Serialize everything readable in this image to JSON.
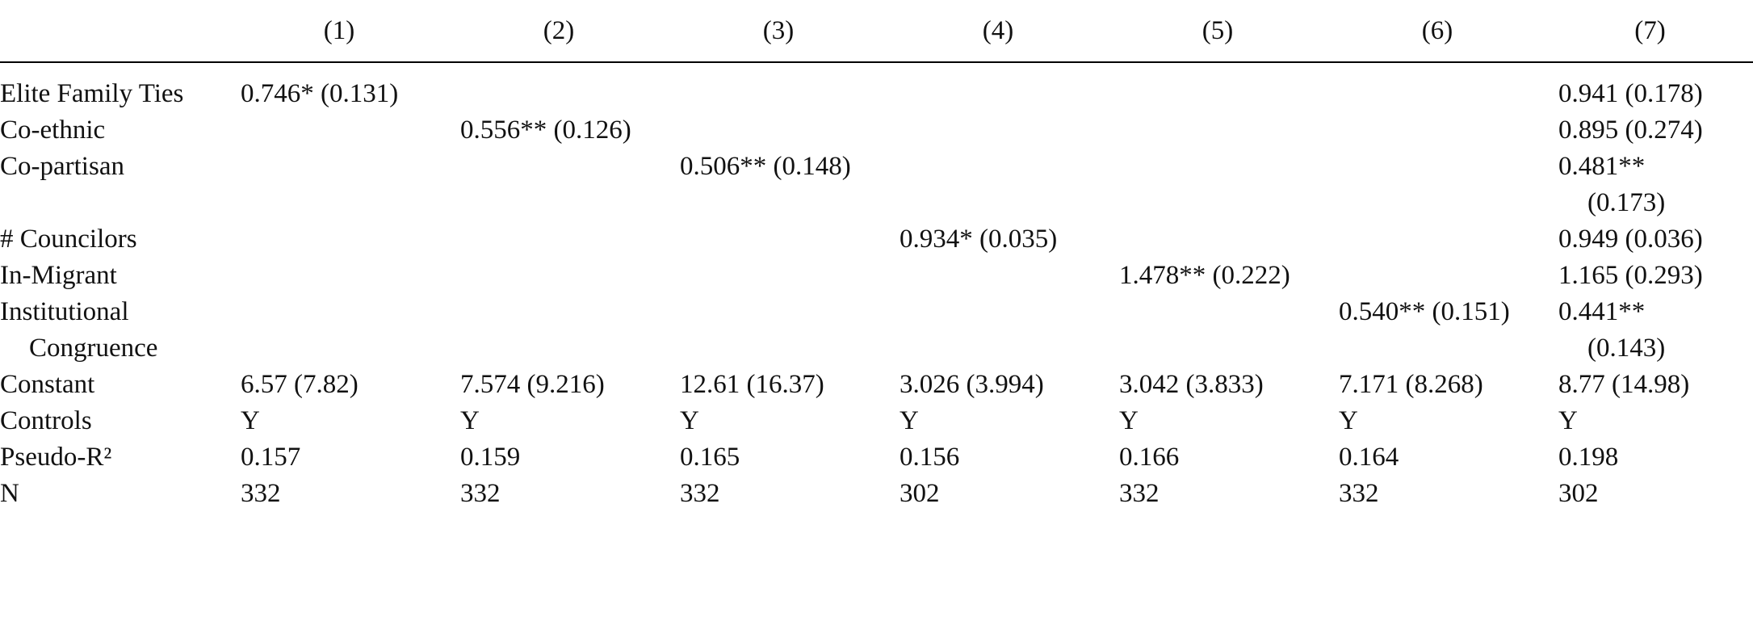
{
  "table": {
    "header": [
      "(1)",
      "(2)",
      "(3)",
      "(4)",
      "(5)",
      "(6)",
      "(7)"
    ],
    "rows": [
      {
        "label": "Elite Family Ties",
        "cells": [
          "0.746* (0.131)",
          null,
          null,
          null,
          null,
          null,
          "0.941 (0.178)"
        ]
      },
      {
        "label": "Co-ethnic",
        "cells": [
          null,
          "0.556** (0.126)",
          null,
          null,
          null,
          null,
          "0.895 (0.274)"
        ]
      },
      {
        "label": "Co-partisan",
        "cells": [
          null,
          null,
          "0.506** (0.148)",
          null,
          null,
          null,
          "0.481** (0.173)"
        ]
      },
      {
        "label": "# Councilors",
        "cells": [
          null,
          null,
          null,
          "0.934* (0.035)",
          null,
          null,
          "0.949 (0.036)"
        ]
      },
      {
        "label": "In-Migrant",
        "cells": [
          null,
          null,
          null,
          null,
          "1.478** (0.222)",
          null,
          "1.165 (0.293)"
        ]
      },
      {
        "label": "Institutional Congruence",
        "cells": [
          null,
          null,
          null,
          null,
          null,
          "0.540** (0.151)",
          "0.441** (0.143)"
        ]
      },
      {
        "label": "Constant",
        "cells": [
          "6.57 (7.82)",
          "7.574 (9.216)",
          "12.61 (16.37)",
          "3.026 (3.994)",
          "3.042 (3.833)",
          "7.171 (8.268)",
          "8.77 (14.98)"
        ]
      },
      {
        "label": "Controls",
        "cells": [
          "Y",
          "Y",
          "Y",
          "Y",
          "Y",
          "Y",
          "Y"
        ]
      },
      {
        "label": "Pseudo-R²",
        "cells": [
          "0.157",
          "0.159",
          "0.165",
          "0.156",
          "0.166",
          "0.164",
          "0.198"
        ]
      },
      {
        "label": "N",
        "cells": [
          "332",
          "332",
          "332",
          "302",
          "332",
          "332",
          "302"
        ]
      }
    ]
  }
}
